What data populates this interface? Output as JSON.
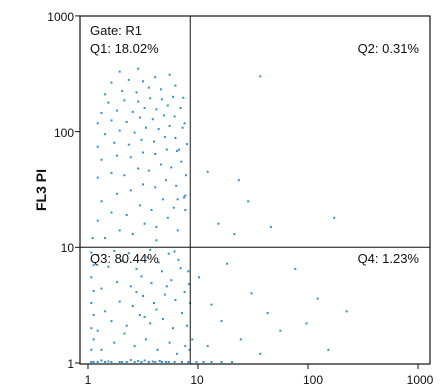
{
  "chart_data": {
    "type": "scatter",
    "title": "",
    "xlabel": "",
    "ylabel": "FL3 PI",
    "xscale": "log",
    "yscale": "log",
    "xlim": [
      1,
      1000
    ],
    "ylim": [
      1,
      1000
    ],
    "x_ticks": [
      "1",
      "10",
      "100",
      "1000"
    ],
    "y_ticks": [
      "1",
      "10",
      "100",
      "1000"
    ],
    "gate_label": "Gate: R1",
    "quadrant_divider": {
      "x": 8.5,
      "y": 10
    },
    "quadrants": [
      {
        "id": "Q1",
        "label": "Q1: 18.02%",
        "percent": 18.02
      },
      {
        "id": "Q2",
        "label": "Q2: 0.31%",
        "percent": 0.31
      },
      {
        "id": "Q3",
        "label": "Q3: 80.44%",
        "percent": 80.44
      },
      {
        "id": "Q4",
        "label": "Q4: 1.23%",
        "percent": 1.23
      }
    ],
    "point_color": "#2f8fd8",
    "grid": false,
    "points": [
      [
        1.05,
        1.0
      ],
      [
        1.2,
        1.0
      ],
      [
        1.4,
        1.0
      ],
      [
        1.6,
        1.0
      ],
      [
        1.9,
        1.0
      ],
      [
        2.2,
        1.0
      ],
      [
        2.6,
        1.0
      ],
      [
        3.0,
        1.0
      ],
      [
        3.5,
        1.0
      ],
      [
        4.0,
        1.0
      ],
      [
        4.6,
        1.0
      ],
      [
        5.3,
        1.0
      ],
      [
        6.0,
        1.0
      ],
      [
        7.0,
        1.0
      ],
      [
        8.0,
        1.0
      ],
      [
        9.5,
        1.0
      ],
      [
        11,
        1.0
      ],
      [
        13,
        1.0
      ],
      [
        16,
        1.0
      ],
      [
        20,
        1.0
      ],
      [
        1.1,
        1.02
      ],
      [
        1.5,
        1.03
      ],
      [
        2.0,
        1.02
      ],
      [
        2.8,
        1.04
      ],
      [
        3.8,
        1.03
      ],
      [
        5.0,
        1.02
      ],
      [
        1.3,
        1.05
      ],
      [
        2.4,
        1.06
      ],
      [
        3.2,
        1.05
      ],
      [
        4.4,
        1.04
      ],
      [
        1.05,
        1.3
      ],
      [
        1.1,
        1.6
      ],
      [
        1.05,
        2.0
      ],
      [
        1.1,
        2.6
      ],
      [
        1.05,
        3.3
      ],
      [
        1.1,
        4.2
      ],
      [
        1.05,
        5.5
      ],
      [
        1.1,
        7.0
      ],
      [
        1.05,
        9.0
      ],
      [
        1.08,
        12
      ],
      [
        1.3,
        1.3
      ],
      [
        1.7,
        1.5
      ],
      [
        2.1,
        1.8
      ],
      [
        2.6,
        1.4
      ],
      [
        3.3,
        1.6
      ],
      [
        4.2,
        1.3
      ],
      [
        5.4,
        1.5
      ],
      [
        6.3,
        1.2
      ],
      [
        7.5,
        1.4
      ],
      [
        1.2,
        1.9
      ],
      [
        1.6,
        2.3
      ],
      [
        2.2,
        2.1
      ],
      [
        2.9,
        2.6
      ],
      [
        3.6,
        2.2
      ],
      [
        4.7,
        2.4
      ],
      [
        5.8,
        2.0
      ],
      [
        7.0,
        2.7
      ],
      [
        1.4,
        2.8
      ],
      [
        1.9,
        3.4
      ],
      [
        2.5,
        3.1
      ],
      [
        3.1,
        3.8
      ],
      [
        3.9,
        3.3
      ],
      [
        4.9,
        3.9
      ],
      [
        6.1,
        3.5
      ],
      [
        7.4,
        4.1
      ],
      [
        1.3,
        4.4
      ],
      [
        1.8,
        5.0
      ],
      [
        2.4,
        4.6
      ],
      [
        3.0,
        5.6
      ],
      [
        3.7,
        4.9
      ],
      [
        4.6,
        6.2
      ],
      [
        5.6,
        5.2
      ],
      [
        6.8,
        6.6
      ],
      [
        1.5,
        6.8
      ],
      [
        2.0,
        7.6
      ],
      [
        2.7,
        6.5
      ],
      [
        3.4,
        8.2
      ],
      [
        4.3,
        7.4
      ],
      [
        5.3,
        8.8
      ],
      [
        6.5,
        7.8
      ],
      [
        1.2,
        8.6
      ],
      [
        1.7,
        9.3
      ],
      [
        2.3,
        8.9
      ],
      [
        3.6,
        9.5
      ],
      [
        4.1,
        11.5
      ],
      [
        6.0,
        9.2
      ],
      [
        3.2,
        2.5
      ],
      [
        4.1,
        2.9
      ],
      [
        2.7,
        4.1
      ],
      [
        5.1,
        4.6
      ],
      [
        1.4,
        12
      ],
      [
        1.9,
        14
      ],
      [
        2.5,
        13
      ],
      [
        3.2,
        16
      ],
      [
        4.1,
        15
      ],
      [
        5.2,
        18
      ],
      [
        6.4,
        14
      ],
      [
        1.2,
        17
      ],
      [
        1.6,
        20
      ],
      [
        2.2,
        19
      ],
      [
        2.9,
        23
      ],
      [
        3.7,
        21
      ],
      [
        4.7,
        26
      ],
      [
        5.9,
        22
      ],
      [
        7.3,
        27
      ],
      [
        1.3,
        25
      ],
      [
        1.8,
        29
      ],
      [
        2.4,
        31
      ],
      [
        3.1,
        35
      ],
      [
        4.0,
        33
      ],
      [
        5.0,
        38
      ],
      [
        6.2,
        34
      ],
      [
        1.2,
        40
      ],
      [
        1.6,
        44
      ],
      [
        2.1,
        42
      ],
      [
        2.8,
        48
      ],
      [
        3.5,
        46
      ],
      [
        4.5,
        52
      ],
      [
        5.6,
        49
      ],
      [
        6.9,
        55
      ],
      [
        1.3,
        57
      ],
      [
        1.8,
        62
      ],
      [
        2.4,
        60
      ],
      [
        3.1,
        66
      ],
      [
        4.0,
        64
      ],
      [
        5.1,
        70
      ],
      [
        6.3,
        68
      ],
      [
        1.2,
        74
      ],
      [
        1.7,
        80
      ],
      [
        2.3,
        77
      ],
      [
        3.0,
        85
      ],
      [
        3.9,
        82
      ],
      [
        4.9,
        90
      ],
      [
        6.1,
        88
      ],
      [
        1.4,
        95
      ],
      [
        1.9,
        102
      ],
      [
        2.6,
        98
      ],
      [
        3.3,
        108
      ],
      [
        4.3,
        105
      ],
      [
        5.4,
        112
      ],
      [
        1.2,
        118
      ],
      [
        1.6,
        125
      ],
      [
        2.2,
        121
      ],
      [
        2.9,
        132
      ],
      [
        3.8,
        128
      ],
      [
        4.8,
        138
      ],
      [
        6.0,
        135
      ],
      [
        1.3,
        145
      ],
      [
        1.8,
        152
      ],
      [
        2.5,
        148
      ],
      [
        3.2,
        160
      ],
      [
        4.1,
        156
      ],
      [
        5.2,
        168
      ],
      [
        1.5,
        178
      ],
      [
        2.1,
        186
      ],
      [
        2.8,
        182
      ],
      [
        3.6,
        194
      ],
      [
        4.6,
        190
      ],
      [
        5.8,
        200
      ],
      [
        7.2,
        196
      ],
      [
        1.4,
        210
      ],
      [
        2.0,
        225
      ],
      [
        2.7,
        218
      ],
      [
        3.5,
        240
      ],
      [
        4.5,
        232
      ],
      [
        6.1,
        250
      ],
      [
        1.6,
        265
      ],
      [
        2.3,
        280
      ],
      [
        3.1,
        272
      ],
      [
        4.0,
        295
      ],
      [
        5.4,
        310
      ],
      [
        1.9,
        330
      ],
      [
        2.8,
        350
      ],
      [
        6.8,
        160
      ],
      [
        7.1,
        108
      ],
      [
        6.6,
        70
      ],
      [
        7.6,
        42
      ],
      [
        6.4,
        26
      ],
      [
        7.8,
        78
      ],
      [
        7.4,
        118
      ],
      [
        7.5,
        21
      ],
      [
        7.5,
        28
      ],
      [
        8.0,
        6.2
      ],
      [
        8.1,
        4.8
      ],
      [
        8.3,
        3.3
      ],
      [
        8.7,
        1.6
      ],
      [
        7.8,
        2.1
      ],
      [
        8.2,
        1.3
      ],
      [
        10,
        5.5
      ],
      [
        13,
        3.2
      ],
      [
        16,
        2.3
      ],
      [
        24,
        1.6
      ],
      [
        30,
        4.0
      ],
      [
        42,
        2.7
      ],
      [
        55,
        1.9
      ],
      [
        75,
        6.5
      ],
      [
        95,
        2.2
      ],
      [
        120,
        3.6
      ],
      [
        150,
        1.3
      ],
      [
        220,
        2.8
      ],
      [
        12,
        1.4
      ],
      [
        18,
        7.2
      ],
      [
        36,
        1.2
      ],
      [
        28,
        25
      ],
      [
        45,
        15
      ],
      [
        170,
        18
      ],
      [
        15,
        16
      ],
      [
        23,
        38
      ],
      [
        36,
        300
      ],
      [
        21,
        13
      ],
      [
        12,
        45
      ]
    ]
  }
}
